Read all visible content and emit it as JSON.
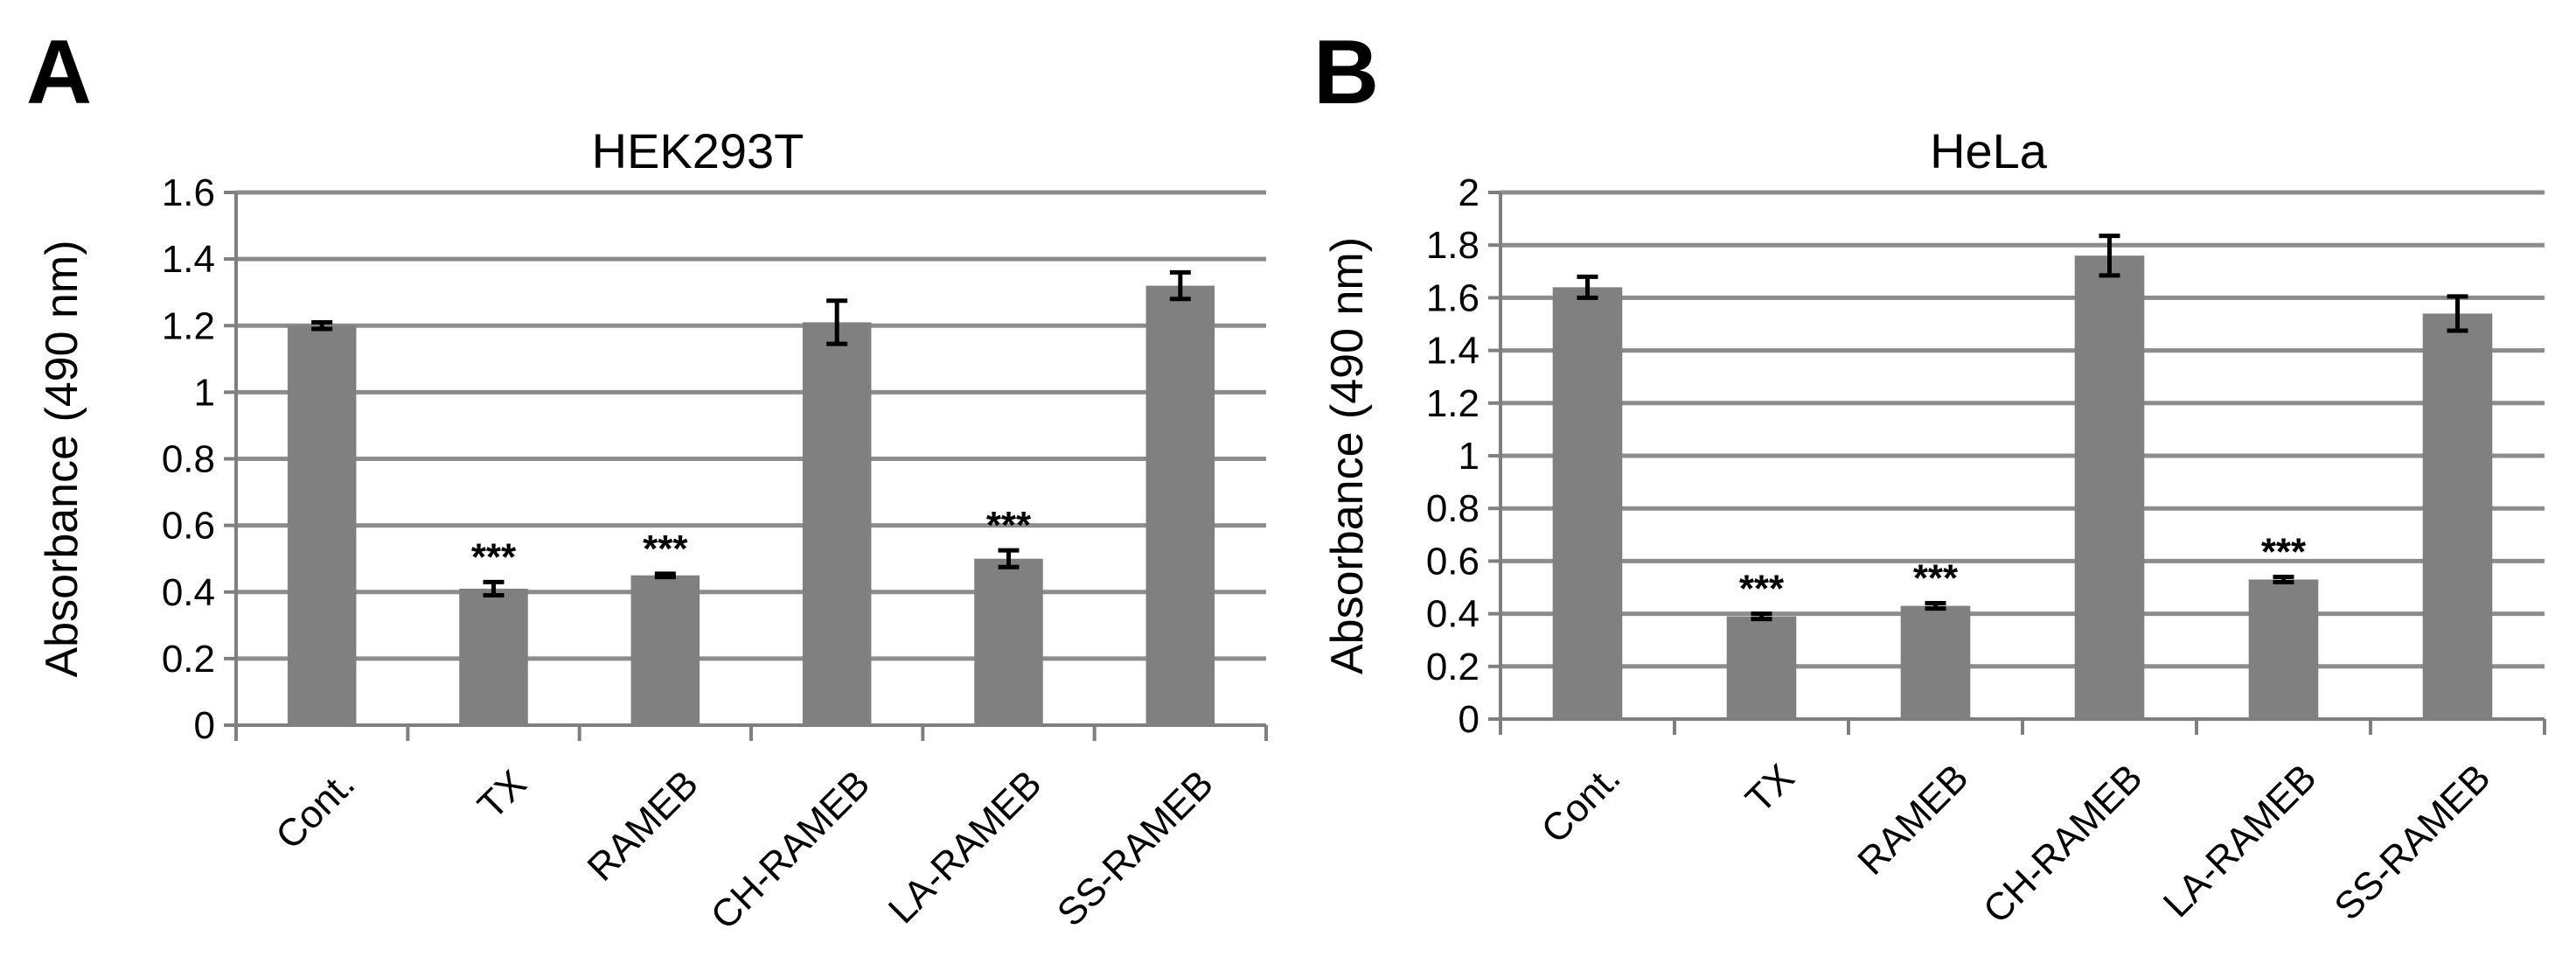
{
  "chart_data": [
    {
      "type": "bar",
      "panel": "A",
      "title": "HEK293T",
      "xlabel": "",
      "ylabel": "Absorbance (490 nm)",
      "ylim": [
        0,
        1.6
      ],
      "yticks": [
        0,
        0.2,
        0.4,
        0.6,
        0.8,
        1,
        1.2,
        1.4,
        1.6
      ],
      "ytick_labels": [
        "0",
        "0.2",
        "0.4",
        "0.6",
        "0.8",
        "1",
        "1.2",
        "1.4",
        "1.6"
      ],
      "grid": true,
      "categories": [
        "Cont.",
        "TX",
        "RAMEB",
        "CH-RAMEB",
        "LA-RAMEB",
        "SS-RAMEB"
      ],
      "values": [
        1.2,
        0.41,
        0.45,
        1.21,
        0.5,
        1.32
      ],
      "errors": [
        0.01,
        0.02,
        0.005,
        0.065,
        0.025,
        0.04
      ],
      "annotations": [
        "",
        "***",
        "***",
        "",
        "***",
        ""
      ],
      "bar_color": "#808080"
    },
    {
      "type": "bar",
      "panel": "B",
      "title": "HeLa",
      "xlabel": "",
      "ylabel": "Absorbance (490 nm)",
      "ylim": [
        0,
        2
      ],
      "yticks": [
        0,
        0.2,
        0.4,
        0.6,
        0.8,
        1,
        1.2,
        1.4,
        1.6,
        1.8,
        2
      ],
      "ytick_labels": [
        "0",
        "0.2",
        "0.4",
        "0.6",
        "0.8",
        "1",
        "1.2",
        "1.4",
        "1.6",
        "1.8",
        "2"
      ],
      "grid": true,
      "categories": [
        "Cont.",
        "TX",
        "RAMEB",
        "CH-RAMEB",
        "LA-RAMEB",
        "SS-RAMEB"
      ],
      "values": [
        1.64,
        0.39,
        0.43,
        1.76,
        0.53,
        1.54
      ],
      "errors": [
        0.04,
        0.01,
        0.01,
        0.075,
        0.01,
        0.065
      ],
      "annotations": [
        "",
        "***",
        "***",
        "",
        "***",
        ""
      ],
      "bar_color": "#808080"
    }
  ],
  "colors": {
    "bar": "#808080",
    "grid": "#8c8c8c",
    "axis": "#7f7f7f",
    "text": "#000000"
  }
}
